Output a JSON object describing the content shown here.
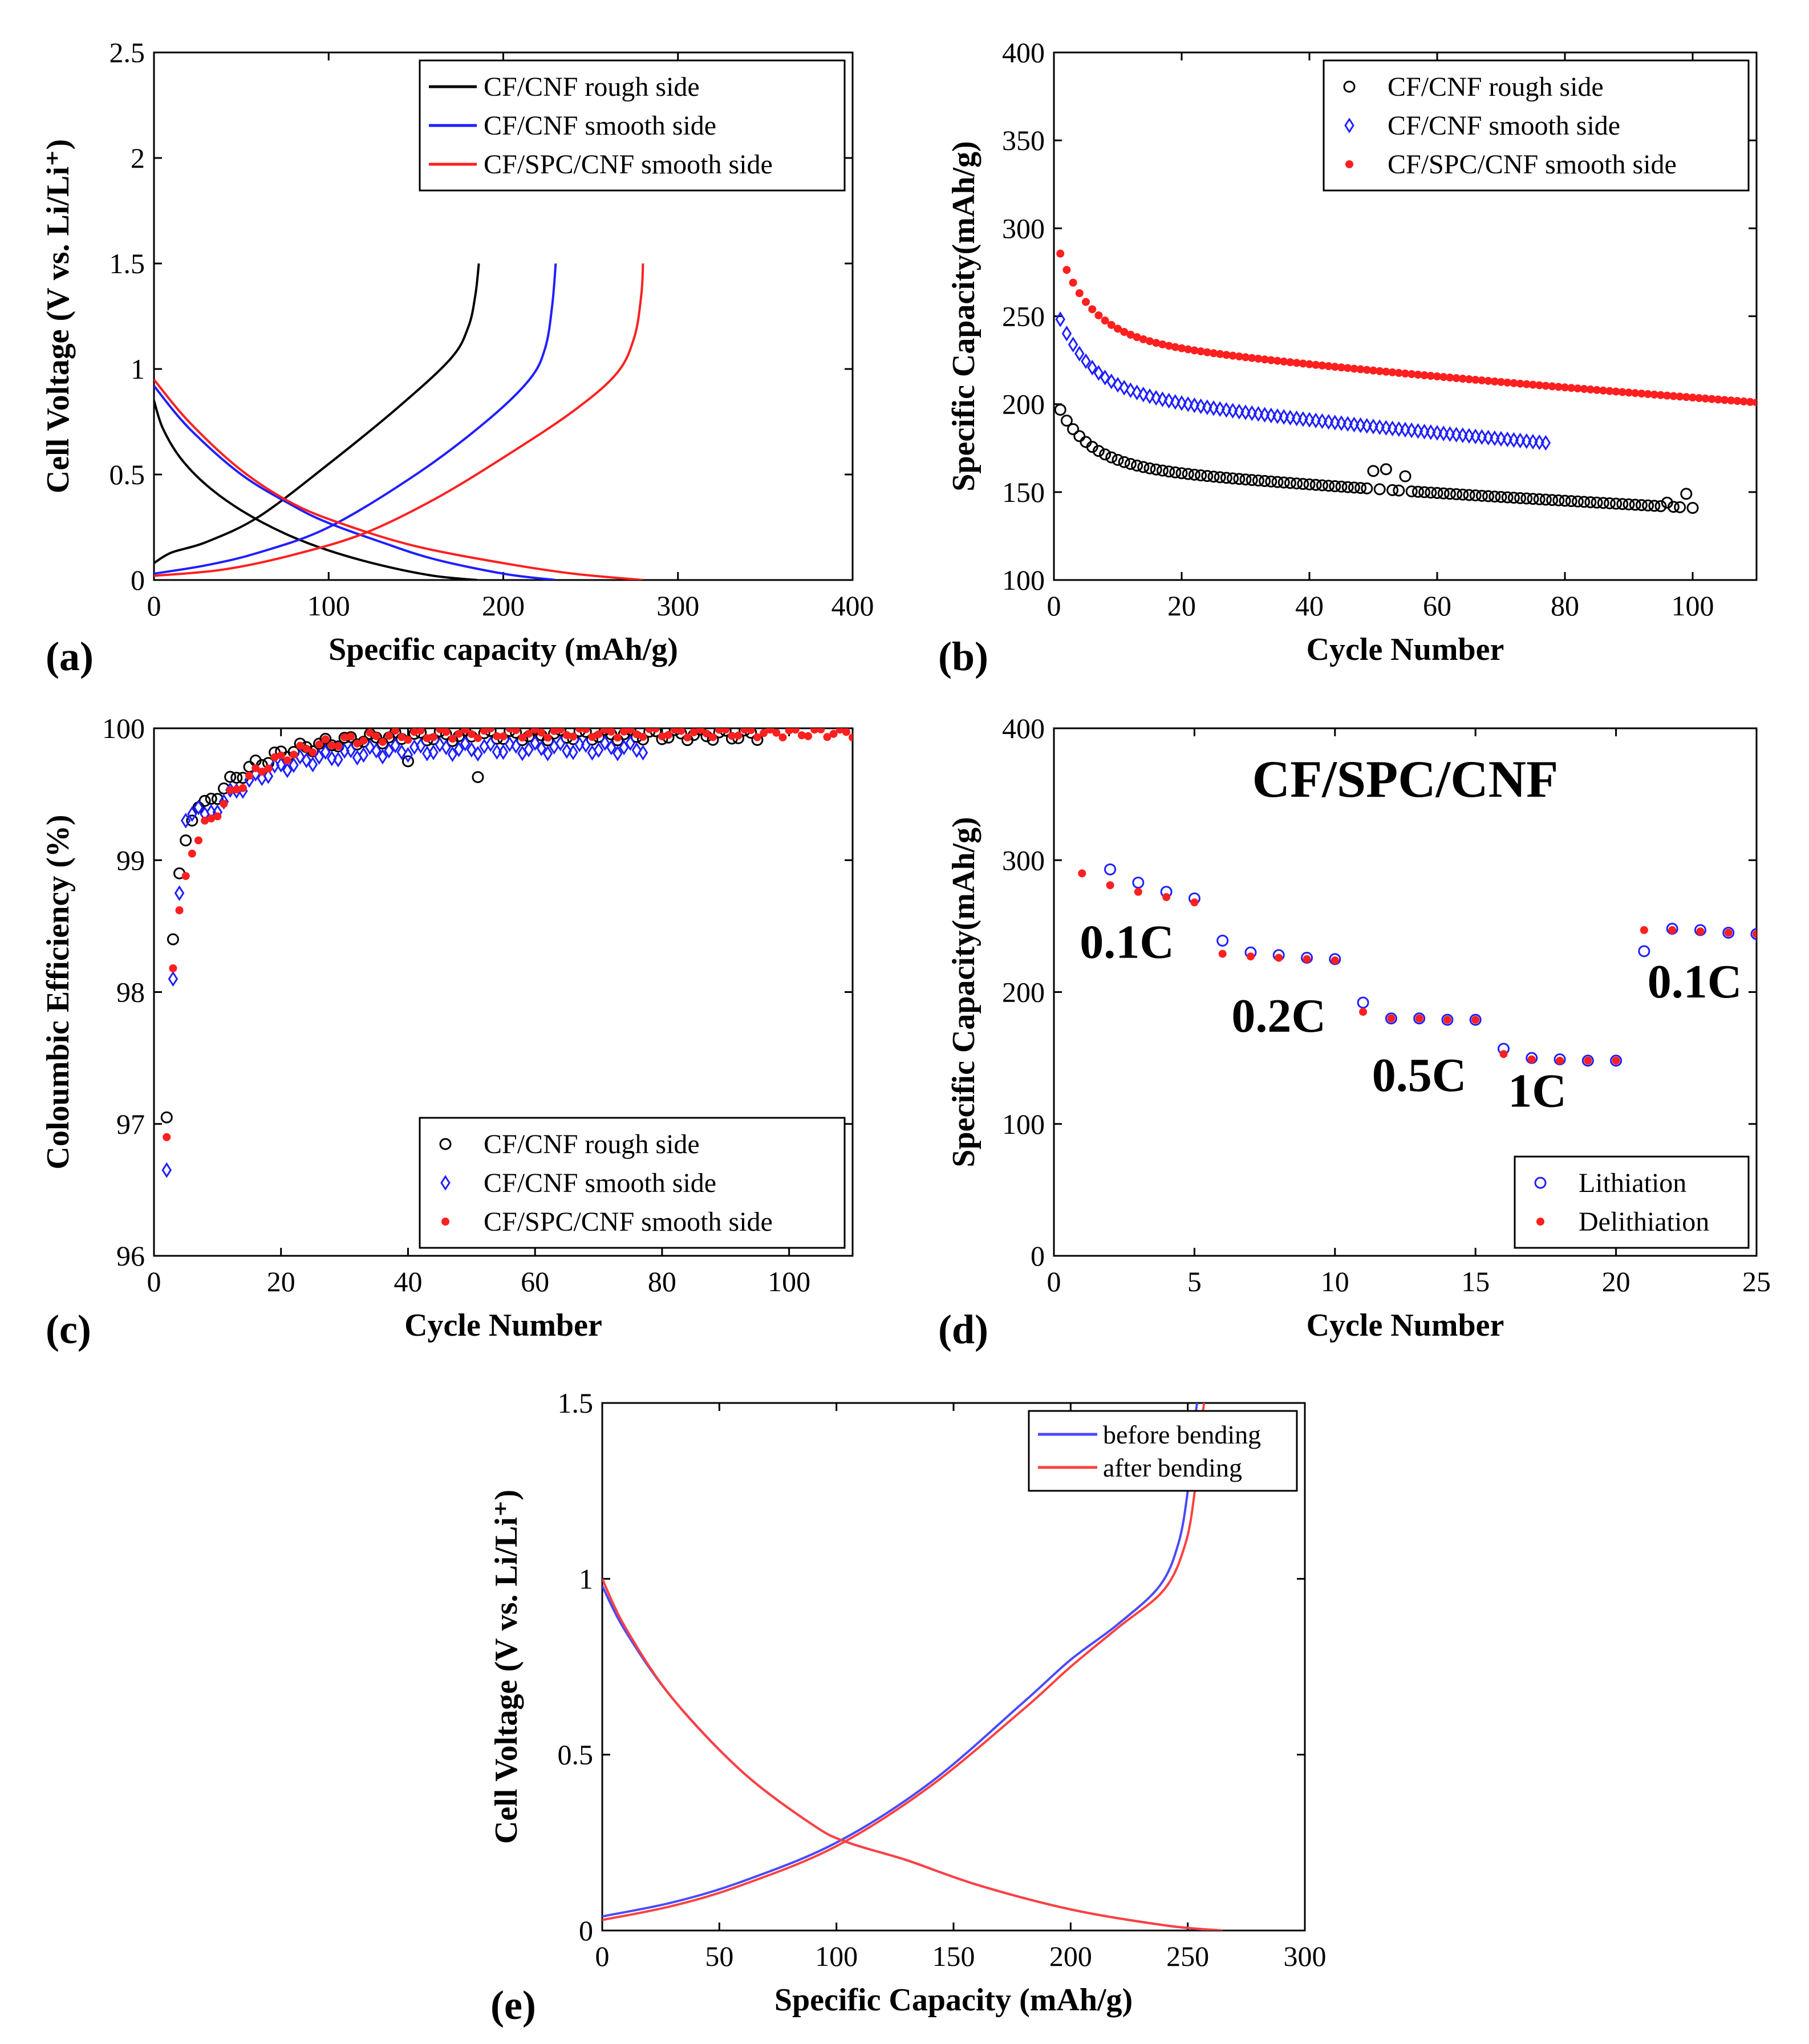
{
  "figure": {
    "colors": {
      "black": "#000000",
      "blue": "#1f1fff",
      "red": "#ff1f1f",
      "red_light": "#ff4040",
      "blue_light": "#4a4aff"
    }
  },
  "chart_data": [
    {
      "id": "a",
      "panel_label": "(a)",
      "type": "line",
      "xlabel": "Specific capacity (mAh/g)",
      "ylabel": "Cell Voltage (V vs. Li/Li⁺)",
      "xlim": [
        0,
        400
      ],
      "ylim": [
        0,
        2.5
      ],
      "xticks": [
        0,
        100,
        200,
        300,
        400
      ],
      "yticks": [
        0,
        0.5,
        1,
        1.5,
        2,
        2.5
      ],
      "ytick_labels": [
        "0",
        "0.5",
        "1",
        "1.5",
        "2",
        "2.5"
      ],
      "legend": [
        "CF/CNF rough side",
        "CF/CNF smooth side",
        "CF/SPC/CNF smooth side"
      ],
      "legend_position": "top-right",
      "series": [
        {
          "name": "CF/CNF rough side",
          "color": "#000000",
          "discharge": {
            "x": [
              0,
              5,
              15,
              30,
              50,
              75,
              100,
              130,
              160,
              185
            ],
            "y": [
              0.85,
              0.72,
              0.58,
              0.45,
              0.33,
              0.22,
              0.14,
              0.07,
              0.02,
              0.0
            ]
          },
          "charge": {
            "x": [
              0,
              10,
              30,
              60,
              100,
              140,
              170,
              180,
              184,
              186
            ],
            "y": [
              0.08,
              0.13,
              0.18,
              0.3,
              0.55,
              0.82,
              1.05,
              1.2,
              1.35,
              1.5
            ]
          }
        },
        {
          "name": "CF/CNF smooth side",
          "color": "#1f1fff",
          "discharge": {
            "x": [
              0,
              20,
              50,
              80,
              100,
              130,
              160,
              200,
              230
            ],
            "y": [
              0.92,
              0.72,
              0.5,
              0.35,
              0.27,
              0.18,
              0.1,
              0.03,
              0.0
            ]
          },
          "charge": {
            "x": [
              0,
              30,
              60,
              100,
              150,
              190,
              215,
              224,
              228,
              230
            ],
            "y": [
              0.03,
              0.07,
              0.13,
              0.25,
              0.5,
              0.75,
              0.95,
              1.1,
              1.3,
              1.5
            ]
          }
        },
        {
          "name": "CF/SPC/CNF smooth side",
          "color": "#ff1f1f",
          "discharge": {
            "x": [
              0,
              20,
              50,
              80,
              110,
              150,
              200,
              240,
              280
            ],
            "y": [
              0.95,
              0.75,
              0.52,
              0.36,
              0.26,
              0.16,
              0.08,
              0.03,
              0.0
            ]
          },
          "charge": {
            "x": [
              0,
              40,
              80,
              120,
              160,
              200,
              240,
              265,
              275,
              279,
              280
            ],
            "y": [
              0.02,
              0.05,
              0.12,
              0.22,
              0.38,
              0.58,
              0.8,
              0.98,
              1.15,
              1.35,
              1.5
            ]
          }
        }
      ]
    },
    {
      "id": "b",
      "panel_label": "(b)",
      "type": "scatter",
      "xlabel": "Cycle Number",
      "ylabel": "Specific Capacity(mAh/g)",
      "xlim": [
        0,
        110
      ],
      "ylim": [
        100,
        400
      ],
      "xticks": [
        0,
        20,
        40,
        60,
        80,
        100
      ],
      "yticks": [
        100,
        150,
        200,
        250,
        300,
        350,
        400
      ],
      "legend": [
        "CF/CNF rough side",
        "CF/CNF smooth side",
        "CF/SPC/CNF smooth side"
      ],
      "legend_position": "top-right",
      "series": [
        {
          "name": "CF/CNF rough side",
          "color": "#000000",
          "marker": "circle",
          "model": {
            "n": 100,
            "y_start": 203,
            "y_end": 141,
            "curve": "decay"
          },
          "outliers": [
            {
              "x": 50,
              "y": 162
            },
            {
              "x": 52,
              "y": 163
            },
            {
              "x": 55,
              "y": 159
            },
            {
              "x": 96,
              "y": 144
            },
            {
              "x": 99,
              "y": 149
            },
            {
              "x": 100,
              "y": 141
            }
          ]
        },
        {
          "name": "CF/CNF smooth side",
          "color": "#1f1fff",
          "marker": "diamond",
          "model": {
            "n": 77,
            "y_start": 256,
            "y_end": 178,
            "curve": "decay"
          }
        },
        {
          "name": "CF/SPC/CNF smooth side",
          "color": "#ff1f1f",
          "marker": "dot",
          "model": {
            "n": 110,
            "y_start": 295,
            "y_end": 201,
            "curve": "decay"
          }
        }
      ]
    },
    {
      "id": "c",
      "panel_label": "(c)",
      "type": "scatter",
      "xlabel": "Cycle Number",
      "ylabel": "Coloumbic Efficiency (%)",
      "xlim": [
        0,
        110
      ],
      "ylim": [
        96,
        100
      ],
      "xticks": [
        0,
        20,
        40,
        60,
        80,
        100
      ],
      "yticks": [
        96,
        97,
        98,
        99,
        100
      ],
      "legend": [
        "CF/CNF rough side",
        "CF/CNF smooth side",
        "CF/SPC/CNF smooth side"
      ],
      "legend_position": "bottom-right",
      "series": [
        {
          "name": "CF/CNF rough side",
          "color": "#000000",
          "marker": "circle",
          "model": {
            "n": 95,
            "first": [
              97.05,
              98.4,
              98.9,
              99.15,
              99.3,
              99.4,
              99.45
            ],
            "plateau": 99.95
          },
          "outliers": [
            {
              "x": 40,
              "y": 99.75
            },
            {
              "x": 51,
              "y": 99.63
            }
          ]
        },
        {
          "name": "CF/CNF smooth side",
          "color": "#1f1fff",
          "marker": "diamond",
          "model": {
            "n": 77,
            "first": [
              96.65,
              98.1,
              98.75,
              99.3,
              99.35,
              99.4,
              99.35
            ],
            "plateau": 99.85
          }
        },
        {
          "name": "CF/SPC/CNF smooth side",
          "color": "#ff1f1f",
          "marker": "dot",
          "model": {
            "n": 110,
            "first": [
              96.9,
              98.18,
              98.62,
              98.88,
              99.05,
              99.15,
              99.3
            ],
            "plateau": 99.97
          }
        }
      ]
    },
    {
      "id": "d",
      "panel_label": "(d)",
      "type": "scatter",
      "title": "CF/SPC/CNF",
      "xlabel": "Cycle Number",
      "ylabel": "Specific Capacity(mAh/g)",
      "xlim": [
        0,
        25
      ],
      "ylim": [
        0,
        400
      ],
      "xticks": [
        0,
        5,
        10,
        15,
        20,
        25
      ],
      "yticks": [
        0,
        100,
        200,
        300,
        400
      ],
      "legend": [
        "Lithiation",
        "Delithiation"
      ],
      "legend_position": "bottom-right",
      "annotations": [
        {
          "text": "0.1C",
          "x": 2.6,
          "y": 226
        },
        {
          "text": "0.2C",
          "x": 8.0,
          "y": 170
        },
        {
          "text": "0.5C",
          "x": 13.0,
          "y": 125
        },
        {
          "text": "1C",
          "x": 17.2,
          "y": 113
        },
        {
          "text": "0.1C",
          "x": 22.8,
          "y": 196
        }
      ],
      "series": [
        {
          "name": "Lithiation",
          "color": "#1f1fff",
          "marker": "circle",
          "x": [
            2,
            3,
            4,
            5,
            6,
            7,
            8,
            9,
            10,
            11,
            12,
            13,
            14,
            15,
            16,
            17,
            18,
            19,
            20,
            21,
            22,
            23,
            24,
            25
          ],
          "y": [
            293,
            283,
            276,
            271,
            239,
            230,
            228,
            226,
            225,
            192,
            180,
            180,
            179,
            179,
            157,
            150,
            149,
            148,
            148,
            231,
            248,
            247,
            245,
            244
          ]
        },
        {
          "name": "Delithiation",
          "color": "#ff1f1f",
          "marker": "dot",
          "x": [
            1,
            2,
            3,
            4,
            5,
            6,
            7,
            8,
            9,
            10,
            11,
            12,
            13,
            14,
            15,
            16,
            17,
            18,
            19,
            20,
            21,
            22,
            23,
            24,
            25
          ],
          "y": [
            290,
            281,
            276,
            272,
            268,
            229,
            227,
            226,
            225,
            224,
            185,
            180,
            180,
            179,
            179,
            153,
            149,
            148,
            148,
            148,
            247,
            247,
            246,
            245,
            244
          ]
        }
      ]
    },
    {
      "id": "e",
      "panel_label": "(e)",
      "type": "line",
      "xlabel": "Specific Capacity (mAh/g)",
      "ylabel": "Cell Voltage (V vs. Li/Li⁺)",
      "xlim": [
        0,
        300
      ],
      "ylim": [
        0,
        1.5
      ],
      "xticks": [
        0,
        50,
        100,
        150,
        200,
        250,
        300
      ],
      "yticks": [
        0,
        0.5,
        1,
        1.5
      ],
      "ytick_labels": [
        "0",
        "0.5",
        "1",
        "1.5"
      ],
      "legend": [
        "before bending",
        "after bending"
      ],
      "legend_position": "top-right",
      "series": [
        {
          "name": "before bending",
          "color": "#4a4aff",
          "discharge": {
            "x": [
              0,
              10,
              30,
              60,
              90,
              105,
              130,
              160,
              200,
              240,
              262
            ],
            "y": [
              0.98,
              0.85,
              0.66,
              0.45,
              0.3,
              0.25,
              0.2,
              0.13,
              0.06,
              0.015,
              0.0
            ]
          },
          "charge": {
            "x": [
              0,
              30,
              60,
              100,
              140,
              180,
              200,
              220,
              238,
              246,
              250,
              252,
              254
            ],
            "y": [
              0.04,
              0.08,
              0.14,
              0.25,
              0.42,
              0.65,
              0.77,
              0.87,
              0.98,
              1.1,
              1.25,
              1.4,
              1.5
            ]
          }
        },
        {
          "name": "after bending",
          "color": "#ff4040",
          "discharge": {
            "x": [
              0,
              10,
              30,
              60,
              90,
              105,
              130,
              160,
              200,
              240,
              265
            ],
            "y": [
              1.0,
              0.86,
              0.66,
              0.45,
              0.3,
              0.25,
              0.2,
              0.13,
              0.06,
              0.015,
              0.0
            ]
          },
          "charge": {
            "x": [
              0,
              30,
              60,
              100,
              140,
              180,
              200,
              220,
              240,
              249,
              253,
              255,
              257
            ],
            "y": [
              0.03,
              0.07,
              0.13,
              0.24,
              0.41,
              0.63,
              0.75,
              0.86,
              0.97,
              1.1,
              1.25,
              1.4,
              1.5
            ]
          }
        }
      ]
    }
  ]
}
